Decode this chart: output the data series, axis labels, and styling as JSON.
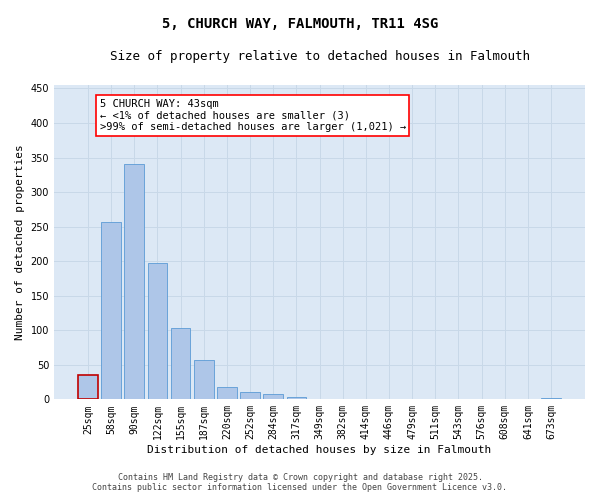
{
  "title": "5, CHURCH WAY, FALMOUTH, TR11 4SG",
  "subtitle": "Size of property relative to detached houses in Falmouth",
  "xlabel": "Distribution of detached houses by size in Falmouth",
  "ylabel": "Number of detached properties",
  "categories": [
    "25sqm",
    "58sqm",
    "90sqm",
    "122sqm",
    "155sqm",
    "187sqm",
    "220sqm",
    "252sqm",
    "284sqm",
    "317sqm",
    "349sqm",
    "382sqm",
    "414sqm",
    "446sqm",
    "479sqm",
    "511sqm",
    "543sqm",
    "576sqm",
    "608sqm",
    "641sqm",
    "673sqm"
  ],
  "values": [
    35,
    256,
    340,
    198,
    103,
    57,
    18,
    10,
    7,
    3,
    1,
    0,
    0,
    1,
    0,
    0,
    0,
    0,
    0,
    0,
    2
  ],
  "bar_color": "#aec6e8",
  "bar_edge_color": "#5b9bd5",
  "highlight_bar_index": 0,
  "highlight_edge_color": "#c00000",
  "annotation_box_text": "5 CHURCH WAY: 43sqm\n← <1% of detached houses are smaller (3)\n>99% of semi-detached houses are larger (1,021) →",
  "ylim": [
    0,
    455
  ],
  "yticks": [
    0,
    50,
    100,
    150,
    200,
    250,
    300,
    350,
    400,
    450
  ],
  "grid_color": "#c8d8e8",
  "background_color": "#dce8f5",
  "footer_line1": "Contains HM Land Registry data © Crown copyright and database right 2025.",
  "footer_line2": "Contains public sector information licensed under the Open Government Licence v3.0.",
  "title_fontsize": 10,
  "subtitle_fontsize": 9,
  "tick_fontsize": 7,
  "ylabel_fontsize": 8,
  "xlabel_fontsize": 8,
  "annotation_fontsize": 7.5,
  "footer_fontsize": 6
}
